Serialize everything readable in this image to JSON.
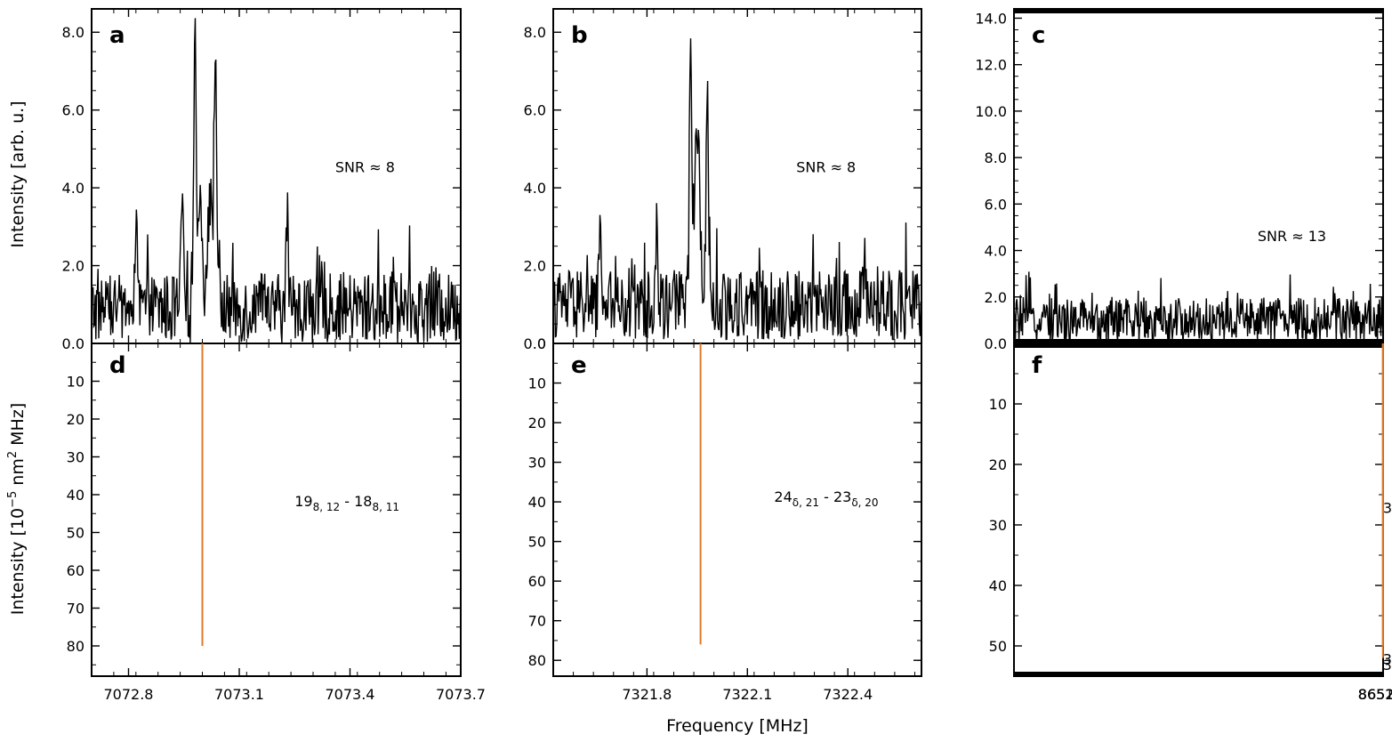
{
  "chart_data": {
    "type": "line",
    "xlabel": "Frequency [MHz]",
    "ylabel_top": "Intensity [arb. u.]",
    "ylabel_bottom_parts": {
      "main": "Intensity [10",
      "exp1": "−5",
      "mid": " nm",
      "exp2": "2",
      "end": " MHz]"
    },
    "colors": {
      "spectrum": "#000000",
      "stick": "#e07b2a",
      "axis": "#000000"
    },
    "columns": [
      {
        "xlim": [
          7072.7,
          7073.7
        ],
        "xticks": [
          7072.8,
          7073.1,
          7073.4,
          7073.7
        ],
        "xtick_labels": [
          "7072.8",
          "7073.1",
          "7073.4",
          "7073.7"
        ],
        "top": {
          "letter": "a",
          "ylim": [
            0,
            8.6
          ],
          "yticks": [
            0,
            2,
            4,
            6,
            8
          ],
          "ytick_labels": [
            "0.0",
            "2.0",
            "4.0",
            "6.0",
            "8.0"
          ],
          "snr_label": "SNR ≈ 8",
          "baseline": 0.9,
          "noise": 0.9,
          "peaks": [
            {
              "x": 7072.98,
              "h": 6.6,
              "w": 0.005
            },
            {
              "x": 7072.995,
              "h": 3.0,
              "w": 0.008
            },
            {
              "x": 7073.02,
              "h": 2.9,
              "w": 0.008
            },
            {
              "x": 7073.035,
              "h": 7.0,
              "w": 0.005
            },
            {
              "x": 7072.945,
              "h": 3.0,
              "w": 0.004
            },
            {
              "x": 7073.23,
              "h": 2.6,
              "w": 0.004
            },
            {
              "x": 7072.82,
              "h": 1.9,
              "w": 0.004
            },
            {
              "x": 7073.52,
              "h": 1.0,
              "w": 0.004
            }
          ]
        },
        "bottom": {
          "letter": "d",
          "ylim": [
            0,
            88
          ],
          "yticks": [
            10,
            20,
            30,
            40,
            50,
            60,
            70,
            80
          ],
          "ytick_labels": [
            "10",
            "20",
            "30",
            "40",
            "50",
            "60",
            "70",
            "80"
          ],
          "sticks": [
            {
              "x": 7073.0,
              "y": 80
            }
          ],
          "labels": [
            {
              "x": 7073.25,
              "y": 43,
              "parts": [
                [
                  "19",
                  "n"
                ],
                [
                  "8, 12",
                  "sub"
                ],
                [
                  " - 18",
                  "n"
                ],
                [
                  "8, 11",
                  "sub"
                ]
              ]
            }
          ]
        }
      },
      {
        "xlim": [
          7321.52,
          7322.62
        ],
        "xticks": [
          7321.8,
          7322.1,
          7322.4
        ],
        "xtick_labels": [
          "7321.8",
          "7322.1",
          "7322.4"
        ],
        "top": {
          "letter": "b",
          "ylim": [
            0,
            8.6
          ],
          "yticks": [
            0,
            2,
            4,
            6,
            8
          ],
          "ytick_labels": [
            "0.0",
            "2.0",
            "4.0",
            "6.0",
            "8.0"
          ],
          "snr_label": "SNR ≈ 8",
          "baseline": 1.0,
          "noise": 0.9,
          "peaks": [
            {
              "x": 7321.93,
              "h": 6.4,
              "w": 0.005
            },
            {
              "x": 7321.945,
              "h": 3.5,
              "w": 0.008
            },
            {
              "x": 7321.955,
              "h": 4.0,
              "w": 0.006
            },
            {
              "x": 7321.98,
              "h": 5.9,
              "w": 0.005
            },
            {
              "x": 7321.66,
              "h": 2.5,
              "w": 0.004
            },
            {
              "x": 7321.83,
              "h": 2.2,
              "w": 0.004
            },
            {
              "x": 7322.45,
              "h": 1.4,
              "w": 0.004
            }
          ]
        },
        "bottom": {
          "letter": "e",
          "ylim": [
            0,
            84
          ],
          "yticks": [
            0,
            10,
            20,
            30,
            40,
            50,
            60,
            70,
            80
          ],
          "ytick_labels": [
            "0",
            "10",
            "20",
            "30",
            "40",
            "50",
            "60",
            "70",
            "80"
          ],
          "sticks": [
            {
              "x": 7321.96,
              "y": 76
            }
          ],
          "labels": [
            {
              "x": 7322.18,
              "y": 40,
              "parts": [
                [
                  "24",
                  "n"
                ],
                [
                  "δ, 21",
                  "sub"
                ],
                [
                  " - 23",
                  "n"
                ],
                [
                  "δ, 20",
                  "sub"
                ]
              ]
            }
          ]
        }
      },
      {
        "xlim": [
          7651.55,
          8652.55
        ],
        "xticks": [
          8651.7,
          8652.0,
          8652.3
        ],
        "xtick_labels": [
          "8651.7",
          "8652.0",
          "8652.3"
        ],
        "top": {
          "letter": "c",
          "ylim": [
            0,
            14.4
          ],
          "yticks": [
            0,
            2,
            4,
            6,
            8,
            10,
            12,
            14
          ],
          "ytick_labels": [
            "0.0",
            "2.0",
            "4.0",
            "6.0",
            "8.0",
            "10.0",
            "12.0",
            "14.0"
          ],
          "snr_label": "SNR ≈ 13",
          "baseline": 1.0,
          "noise": 1.0,
          "peaks": [
            {
              "x": 8651.9,
              "h": 9.8,
              "w": 0.006
            },
            {
              "x": 8651.935,
              "h": 11.6,
              "w": 0.006
            },
            {
              "x": 8651.915,
              "h": 6.5,
              "w": 0.012
            },
            {
              "x": 8651.955,
              "h": 4.2,
              "w": 0.008
            },
            {
              "x": 8651.865,
              "h": 4.6,
              "w": 0.005
            },
            {
              "x": 8651.97,
              "h": 4.2,
              "w": 0.006
            },
            {
              "x": 8651.79,
              "h": 3.8,
              "w": 0.004
            },
            {
              "x": 8652.06,
              "h": 2.5,
              "w": 0.005
            }
          ]
        },
        "bottom": {
          "letter": "f",
          "ylim": [
            0,
            55
          ],
          "yticks": [
            10,
            20,
            30,
            40,
            50
          ],
          "ytick_labels": [
            "10",
            "20",
            "30",
            "40",
            "50"
          ],
          "sticks": [
            {
              "x": 8651.88,
              "y": 52
            },
            {
              "x": 8651.97,
              "y": 50
            }
          ],
          "labels": [
            {
              "x": 8652.15,
              "y": 28,
              "parts": [
                [
                  "30",
                  "n"
                ],
                [
                  "γ, 28",
                  "sub"
                ],
                [
                  " - 29",
                  "n"
                ],
                [
                  "γ, 27",
                  "sub"
                ]
              ]
            },
            {
              "x": 8651.75,
              "y": 54,
              "parts": [
                [
                  "31",
                  "n"
                ],
                [
                  "β, 30",
                  "sub"
                ],
                [
                  " - 30",
                  "n"
                ],
                [
                  "β, 29",
                  "sub"
                ]
              ]
            },
            {
              "x": 8652.07,
              "y": 53,
              "parts": [
                [
                  "32",
                  "n"
                ],
                [
                  "α, 32",
                  "sub"
                ],
                [
                  " - 31",
                  "n"
                ],
                [
                  "α, 31",
                  "sub"
                ]
              ]
            }
          ]
        }
      }
    ]
  }
}
